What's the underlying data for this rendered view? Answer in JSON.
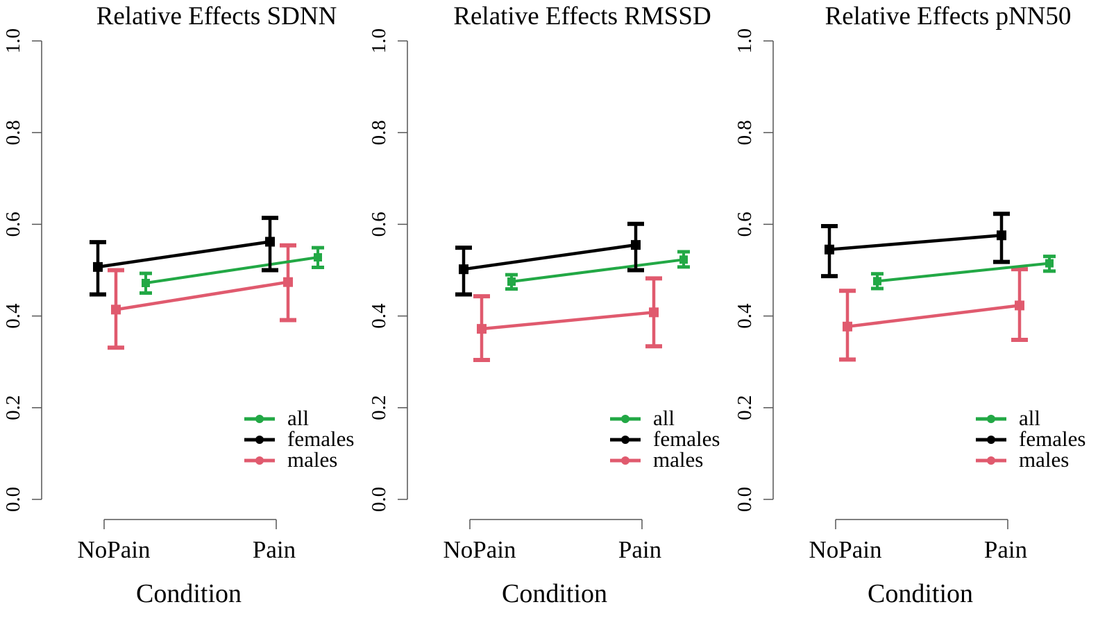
{
  "colors": {
    "all": "#22a845",
    "females": "#000000",
    "males": "#e05a6e",
    "axis": "#555555"
  },
  "chart_data": [
    {
      "type": "line",
      "title": "Relative Effects SDNN",
      "xlabel": "Condition",
      "ylabel": "",
      "categories": [
        "NoPain",
        "Pain"
      ],
      "ylim": [
        0.0,
        1.0
      ],
      "yticks": [
        "0.0",
        "0.2",
        "0.4",
        "0.6",
        "0.8",
        "1.0"
      ],
      "legend": {
        "position": "bottom-right",
        "entries": [
          "all",
          "females",
          "males"
        ]
      },
      "series": [
        {
          "name": "all",
          "values": [
            0.472,
            0.528
          ],
          "lower": [
            0.45,
            0.506
          ],
          "upper": [
            0.493,
            0.549
          ]
        },
        {
          "name": "females",
          "values": [
            0.507,
            0.562
          ],
          "lower": [
            0.447,
            0.5
          ],
          "upper": [
            0.561,
            0.614
          ]
        },
        {
          "name": "males",
          "values": [
            0.414,
            0.474
          ],
          "lower": [
            0.331,
            0.391
          ],
          "upper": [
            0.5,
            0.554
          ]
        }
      ]
    },
    {
      "type": "line",
      "title": "Relative Effects RMSSD",
      "xlabel": "Condition",
      "ylabel": "",
      "categories": [
        "NoPain",
        "Pain"
      ],
      "ylim": [
        0.0,
        1.0
      ],
      "yticks": [
        "0.0",
        "0.2",
        "0.4",
        "0.6",
        "0.8",
        "1.0"
      ],
      "legend": {
        "position": "bottom-right",
        "entries": [
          "all",
          "females",
          "males"
        ]
      },
      "series": [
        {
          "name": "all",
          "values": [
            0.475,
            0.523
          ],
          "lower": [
            0.459,
            0.507
          ],
          "upper": [
            0.49,
            0.54
          ]
        },
        {
          "name": "females",
          "values": [
            0.502,
            0.555
          ],
          "lower": [
            0.447,
            0.5
          ],
          "upper": [
            0.549,
            0.601
          ]
        },
        {
          "name": "males",
          "values": [
            0.372,
            0.408
          ],
          "lower": [
            0.304,
            0.334
          ],
          "upper": [
            0.443,
            0.482
          ]
        }
      ]
    },
    {
      "type": "line",
      "title": "Relative Effects pNN50",
      "xlabel": "Condition",
      "ylabel": "",
      "categories": [
        "NoPain",
        "Pain"
      ],
      "ylim": [
        0.0,
        1.0
      ],
      "yticks": [
        "0.0",
        "0.2",
        "0.4",
        "0.6",
        "0.8",
        "1.0"
      ],
      "legend": {
        "position": "bottom-right",
        "entries": [
          "all",
          "females",
          "males"
        ]
      },
      "series": [
        {
          "name": "all",
          "values": [
            0.476,
            0.515
          ],
          "lower": [
            0.46,
            0.498
          ],
          "upper": [
            0.492,
            0.53
          ]
        },
        {
          "name": "females",
          "values": [
            0.545,
            0.576
          ],
          "lower": [
            0.487,
            0.518
          ],
          "upper": [
            0.596,
            0.623
          ]
        },
        {
          "name": "males",
          "values": [
            0.377,
            0.423
          ],
          "lower": [
            0.305,
            0.348
          ],
          "upper": [
            0.455,
            0.502
          ]
        }
      ]
    }
  ]
}
